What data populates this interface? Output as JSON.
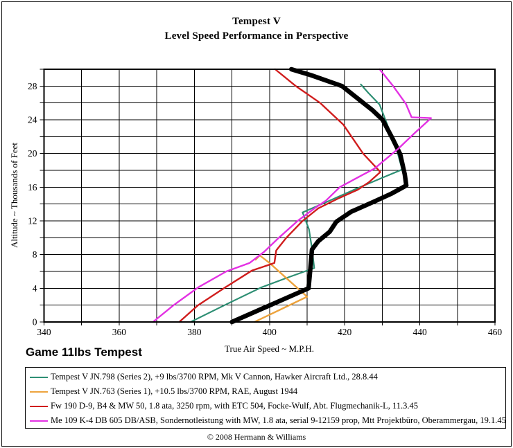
{
  "title": {
    "line1": "Tempest V",
    "line2": "Level Speed Performance in Perspective"
  },
  "labels": {
    "game_label": "Game 11lbs Tempest"
  },
  "axes": {
    "x_title": "True Air Speed ~ M.P.H.",
    "y_title": "Altitude ~ Thousands of Feet"
  },
  "footer": {
    "copyright": "© 2008 Hermann & Williams"
  },
  "chart_data": {
    "type": "line",
    "title": "Tempest V",
    "subtitle": "Level Speed Performance in Perspective",
    "xlabel": "True Air Speed ~ M.P.H.",
    "ylabel": "Altitude ~ Thousands of Feet",
    "xlim": [
      340,
      460
    ],
    "ylim": [
      0,
      30
    ],
    "x_grid_step": 10,
    "y_grid_step": 2,
    "x_major_ticks": [
      340,
      360,
      380,
      400,
      420,
      440,
      460
    ],
    "y_major_ticks": [
      0,
      4,
      8,
      12,
      16,
      20,
      24,
      28
    ],
    "grid": true,
    "legend_position": "bottom",
    "series": [
      {
        "key": "tempest-jn798",
        "name": "Tempest V JN.798 (Series 2), +9 lbs/3700 RPM, Mk V Cannon, Hawker Aircraft Ltd., 28.8.44",
        "color": "#2e8f74",
        "width": 2.2,
        "points": [
          [
            379,
            0
          ],
          [
            389,
            2.2
          ],
          [
            397.8,
            4.1
          ],
          [
            405,
            5.3
          ],
          [
            411.9,
            6.4
          ],
          [
            411.2,
            9
          ],
          [
            410.5,
            11
          ],
          [
            408.8,
            13
          ],
          [
            416,
            14.4
          ],
          [
            423.5,
            15.9
          ],
          [
            431,
            17.3
          ],
          [
            435.3,
            18.1
          ],
          [
            433.9,
            20.4
          ],
          [
            431.7,
            23
          ],
          [
            429.3,
            25.8
          ],
          [
            426.3,
            27.2
          ],
          [
            424.3,
            28.2
          ]
        ]
      },
      {
        "key": "tempest-jn763",
        "name": "Tempest V JN.763 (Series 1), +10.5 lbs/3700 RPM, RAE, August 1944",
        "color": "#eda33d",
        "width": 2.4,
        "points": [
          [
            396,
            0
          ],
          [
            403.5,
            1.6
          ],
          [
            410,
            3
          ],
          [
            404.5,
            5.2
          ],
          [
            400,
            7
          ],
          [
            397.4,
            7.9
          ],
          [
            396.3,
            7.4
          ]
        ]
      },
      {
        "key": "fw190-d9",
        "name": "Fw 190 D-9, B4 & MW 50, 1.8 ata, 3250 rpm, with ETC 504, Focke-Wulf, Abt. Flugmechanik-L, 11.3.45",
        "color": "#d01d1d",
        "width": 2.4,
        "points": [
          [
            376,
            0
          ],
          [
            381,
            2
          ],
          [
            388.2,
            4.1
          ],
          [
            395.3,
            6.1
          ],
          [
            401.3,
            7
          ],
          [
            401.8,
            8.5
          ],
          [
            404.5,
            10
          ],
          [
            408.8,
            12
          ],
          [
            413,
            13.5
          ],
          [
            418.5,
            14.7
          ],
          [
            423.5,
            15.7
          ],
          [
            426.5,
            16.6
          ],
          [
            429.5,
            17.8
          ],
          [
            424.9,
            20
          ],
          [
            419.7,
            23.4
          ],
          [
            413.5,
            26
          ],
          [
            407,
            28
          ],
          [
            401.5,
            30
          ]
        ]
      },
      {
        "key": "game-tempest",
        "name": "Game 11lbs Tempest",
        "color": "#000000",
        "width": 6.5,
        "points": [
          [
            390,
            0
          ],
          [
            410.4,
            4
          ],
          [
            411,
            7
          ],
          [
            411.3,
            8.6
          ],
          [
            413,
            9.6
          ],
          [
            416,
            10.7
          ],
          [
            417.8,
            11.9
          ],
          [
            421.8,
            13.1
          ],
          [
            427.4,
            14.2
          ],
          [
            432.3,
            15.2
          ],
          [
            436.4,
            16.2
          ],
          [
            436,
            17.5
          ],
          [
            434.8,
            19.9
          ],
          [
            432.6,
            21.9
          ],
          [
            430.1,
            24
          ],
          [
            427.5,
            25.1
          ],
          [
            419.3,
            28
          ],
          [
            411,
            29.3
          ],
          [
            405.8,
            30
          ]
        ]
      },
      {
        "key": "me109-k4",
        "name": "Me 109 K-4 DB 605 DB/ASB, Sondernotleistung with MW, 1.8 ata, serial 9-12159 prop, Mtt Projektbüro, Oberammergau, 19.1.45",
        "color": "#e331e3",
        "width": 2.4,
        "points": [
          [
            369,
            0
          ],
          [
            374.5,
            2
          ],
          [
            381,
            4.1
          ],
          [
            388.5,
            6
          ],
          [
            394.7,
            7
          ],
          [
            398.5,
            8.3
          ],
          [
            402.5,
            10
          ],
          [
            407.5,
            12
          ],
          [
            412,
            13.5
          ],
          [
            415,
            14.4
          ],
          [
            418.7,
            16
          ],
          [
            424.5,
            17.4
          ],
          [
            427.9,
            18.2
          ],
          [
            434.1,
            20.5
          ],
          [
            438.8,
            22.5
          ],
          [
            443,
            24.2
          ],
          [
            437.8,
            24.3
          ],
          [
            436.3,
            25.9
          ],
          [
            432.9,
            28
          ],
          [
            429.3,
            30
          ]
        ]
      }
    ]
  },
  "legend": {
    "order": [
      "tempest-jn798",
      "tempest-jn763",
      "fw190-d9",
      "me109-k4"
    ]
  }
}
